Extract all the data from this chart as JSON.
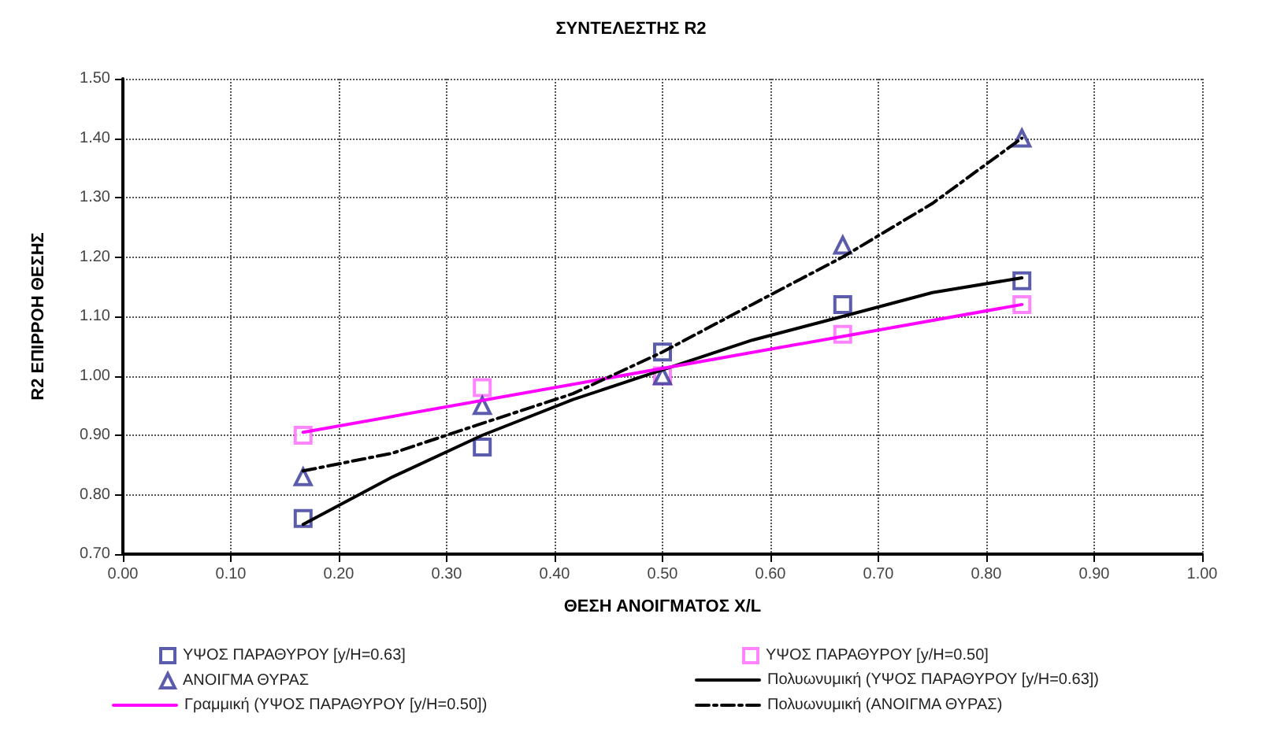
{
  "chart_data": {
    "type": "scatter",
    "title": "ΣΥΝΤΕΛΕΣΤΗΣ R2",
    "xlabel": "ΘΕΣΗ ΑΝΟΙΓΜΑΤΟΣ X/L",
    "ylabel": "R2 ΕΠΙΡΡΟΗ ΘΕΣΗΣ",
    "xlim": [
      0,
      1
    ],
    "xticks": [
      {
        "value": 0,
        "label": "0.00"
      },
      {
        "value": 0.1,
        "label": "0.10"
      },
      {
        "value": 0.2,
        "label": "0.20"
      },
      {
        "value": 0.3,
        "label": "0.30"
      },
      {
        "value": 0.4,
        "label": "0.40"
      },
      {
        "value": 0.5,
        "label": "0.50"
      },
      {
        "value": 0.6,
        "label": "0.60"
      },
      {
        "value": 0.7,
        "label": "0.70"
      },
      {
        "value": 0.8,
        "label": "0.80"
      },
      {
        "value": 0.9,
        "label": "0.90"
      },
      {
        "value": 1,
        "label": "1.00"
      }
    ],
    "ylim": [
      0.7,
      1.5
    ],
    "yticks": [
      {
        "value": 0.7,
        "label": "0.70"
      },
      {
        "value": 0.8,
        "label": "0.80"
      },
      {
        "value": 0.9,
        "label": "0.90"
      },
      {
        "value": 1,
        "label": "1.00"
      },
      {
        "value": 1.1,
        "label": "1.10"
      },
      {
        "value": 1.2,
        "label": "1.20"
      },
      {
        "value": 1.3,
        "label": "1.30"
      },
      {
        "value": 1.4,
        "label": "1.40"
      },
      {
        "value": 1.5,
        "label": "1.50"
      }
    ],
    "grid": true,
    "legend": "bottom",
    "series": [
      {
        "name": "ΥΨΟΣ ΠΑΡΑΘΥΡΟΥ [y/H=0.63]",
        "type": "scatter",
        "marker": "square",
        "color": "#333399",
        "x": [
          0.167,
          0.333,
          0.5,
          0.667,
          0.833
        ],
        "values": [
          0.76,
          0.88,
          1.04,
          1.12,
          1.16
        ]
      },
      {
        "name": "ΥΨΟΣ ΠΑΡΑΘΥΡΟΥ [y/H=0.50]",
        "type": "scatter",
        "marker": "square",
        "color": "#ff66ff",
        "x": [
          0.167,
          0.333,
          0.5,
          0.667,
          0.833
        ],
        "values": [
          0.9,
          0.98,
          1.0,
          1.07,
          1.12
        ]
      },
      {
        "name": "ΑΝΟΙΓΜΑ ΘΥΡΑΣ",
        "type": "scatter",
        "marker": "triangle",
        "color": "#333399",
        "x": [
          0.167,
          0.333,
          0.5,
          0.667,
          0.833
        ],
        "values": [
          0.83,
          0.95,
          1.0,
          1.22,
          1.4
        ]
      },
      {
        "name": "Πολυωνυμική (ΥΨΟΣ ΠΑΡΑΘΥΡΟΥ [y/H=0.63])",
        "type": "line",
        "marker": "none",
        "line_style": "solid",
        "color": "#000000",
        "x": [
          0.167,
          0.25,
          0.333,
          0.417,
          0.5,
          0.583,
          0.667,
          0.75,
          0.833
        ],
        "values": [
          0.75,
          0.83,
          0.9,
          0.96,
          1.01,
          1.06,
          1.1,
          1.14,
          1.165
        ]
      },
      {
        "name": "Γραμμική (ΥΨΟΣ ΠΑΡΑΘΥΡΟΥ [y/H=0.50])",
        "type": "line",
        "marker": "none",
        "line_style": "solid",
        "color": "#ff00ff",
        "x": [
          0.167,
          0.833
        ],
        "values": [
          0.905,
          1.12
        ]
      },
      {
        "name": "Πολυωνυμική (ΑΝΟΙΓΜΑ ΘΥΡΑΣ)",
        "type": "line",
        "marker": "none",
        "line_style": "dashed",
        "color": "#000000",
        "x": [
          0.167,
          0.25,
          0.333,
          0.417,
          0.5,
          0.583,
          0.667,
          0.75,
          0.833
        ],
        "values": [
          0.84,
          0.87,
          0.92,
          0.97,
          1.04,
          1.12,
          1.2,
          1.29,
          1.4
        ]
      }
    ]
  }
}
